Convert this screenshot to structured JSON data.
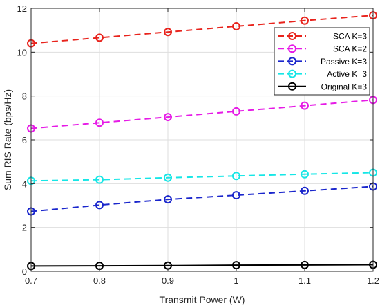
{
  "chart_data": {
    "type": "line",
    "title": "",
    "xlabel": "Transmit Power (W)",
    "ylabel": "Sum RIS Rate (bps/Hz)",
    "x": [
      0.7,
      0.8,
      0.9,
      1.0,
      1.1,
      1.2
    ],
    "xticks": [
      "0.7",
      "0.8",
      "0.9",
      "1",
      "1.1",
      "1.2"
    ],
    "yticks": [
      "0",
      "2",
      "4",
      "6",
      "8",
      "10",
      "12"
    ],
    "xlim": [
      0.7,
      1.2
    ],
    "ylim": [
      0,
      12
    ],
    "grid": true,
    "legend_position": "top-right",
    "series": [
      {
        "name": "SCA K=3",
        "color": "#e8231c",
        "dash": "dashed",
        "marker": "circle",
        "values": [
          10.4,
          10.66,
          10.92,
          11.18,
          11.44,
          11.68
        ]
      },
      {
        "name": "SCA K=2",
        "color": "#e61be6",
        "dash": "dashed",
        "marker": "circle",
        "values": [
          6.52,
          6.78,
          7.04,
          7.3,
          7.56,
          7.82
        ]
      },
      {
        "name": "Passive K=3",
        "color": "#1a26cc",
        "dash": "dashed",
        "marker": "circle",
        "values": [
          2.73,
          3.02,
          3.28,
          3.47,
          3.67,
          3.87
        ]
      },
      {
        "name": "Active K=3",
        "color": "#16e6e6",
        "dash": "dashed",
        "marker": "circle",
        "values": [
          4.13,
          4.18,
          4.27,
          4.35,
          4.43,
          4.5
        ]
      },
      {
        "name": "Original K=3",
        "color": "#000000",
        "dash": "solid",
        "marker": "circle",
        "values": [
          0.24,
          0.25,
          0.26,
          0.28,
          0.29,
          0.3
        ]
      }
    ]
  }
}
